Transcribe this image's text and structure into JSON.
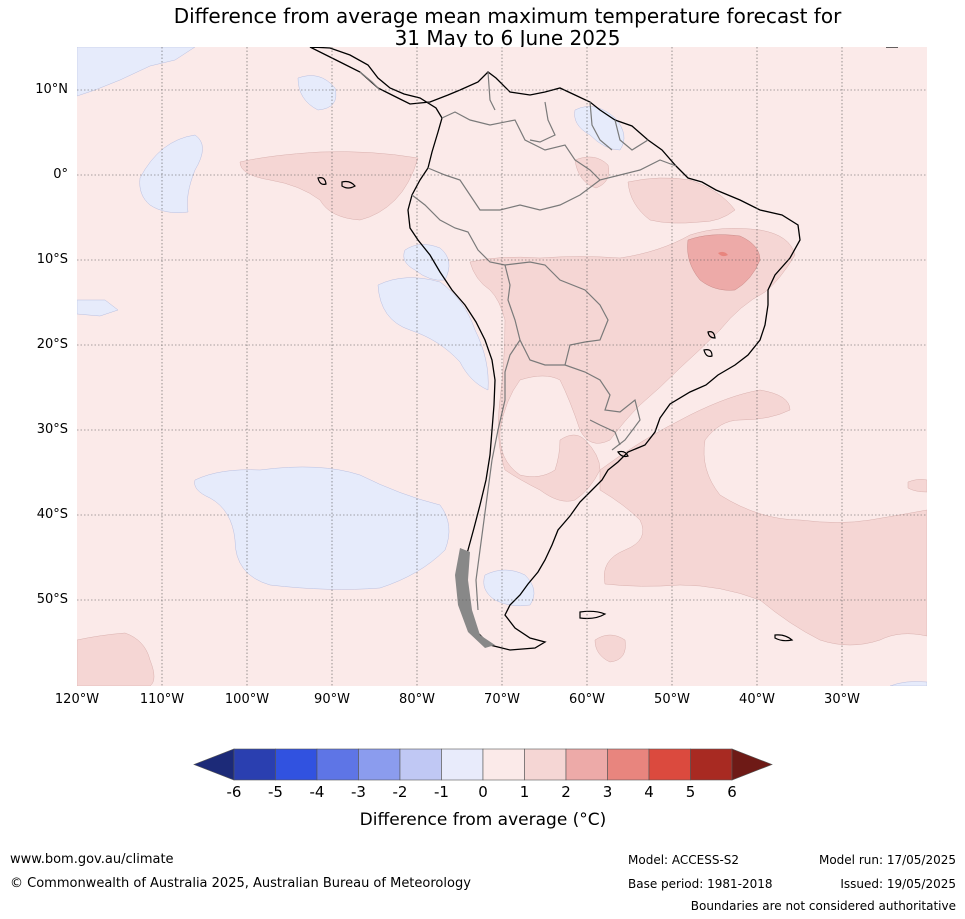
{
  "title": {
    "line1": "Difference from average mean maximum temperature forecast for",
    "line2": "31 May to 6 June 2025"
  },
  "map": {
    "lat_labels": [
      "10°N",
      "0°",
      "10°S",
      "20°S",
      "30°S",
      "40°S",
      "50°S"
    ],
    "lon_labels": [
      "120°W",
      "110°W",
      "100°W",
      "90°W",
      "80°W",
      "70°W",
      "60°W",
      "50°W",
      "40°W",
      "30°W"
    ],
    "ocean_color": "#fbeae9",
    "cool_color": "#e6ebfb",
    "warm_color": "#f5d6d4",
    "hot_color": "#edaaa8"
  },
  "colorbar": {
    "ticks": [
      "-6",
      "-5",
      "-4",
      "-3",
      "-2",
      "-1",
      "0",
      "1",
      "2",
      "3",
      "4",
      "5",
      "6"
    ],
    "colors": [
      "#1c2a78",
      "#2a3fb0",
      "#3152e0",
      "#5e75e6",
      "#8b9cee",
      "#c0c8f4",
      "#e8ebfb",
      "#fbeae9",
      "#f5d6d4",
      "#edaaa8",
      "#e8857e",
      "#db4a3e",
      "#a82a22",
      "#6e1a16"
    ],
    "label": "Difference from average (°C)"
  },
  "footer": {
    "url": "www.bom.gov.au/climate",
    "copyright": "© Commonwealth of Australia 2025, Australian Bureau of Meteorology",
    "model": "Model: ACCESS-S2",
    "base_period": "Base period: 1981-2018",
    "model_run": "Model run: 17/05/2025",
    "issued": "Issued: 19/05/2025",
    "disclaimer": "Boundaries are not considered authoritative"
  }
}
